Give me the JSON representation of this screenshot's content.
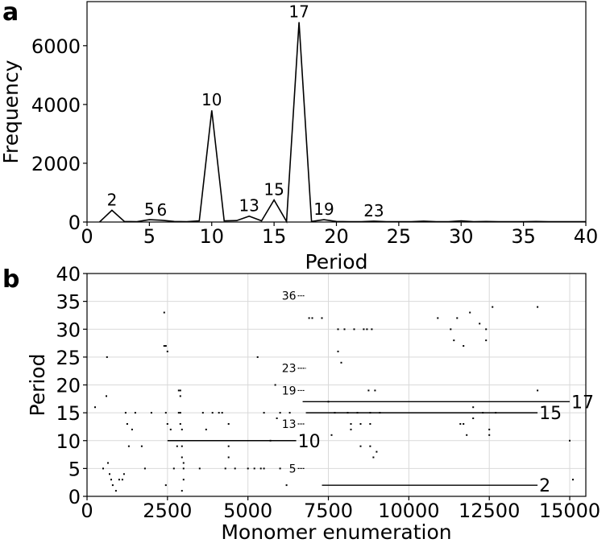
{
  "chart_data": [
    {
      "panel": "a",
      "type": "line",
      "xlabel": "Period",
      "ylabel": "Frequency",
      "xlim": [
        0,
        40
      ],
      "ylim": [
        0,
        7500
      ],
      "xticks": [
        "0",
        "5",
        "10",
        "15",
        "20",
        "25",
        "30",
        "35",
        "40"
      ],
      "yticks": [
        "0",
        "2000",
        "4000",
        "6000"
      ],
      "grid": false,
      "color": "#000000",
      "series": [
        {
          "x": [
            1,
            2,
            3,
            4,
            5,
            6,
            7,
            8,
            9,
            10,
            11,
            12,
            13,
            14,
            15,
            16,
            17,
            18,
            19,
            20,
            21,
            22,
            23,
            24,
            25,
            26,
            27,
            28,
            29,
            30,
            31,
            32,
            33,
            34,
            35,
            36,
            37,
            38,
            39,
            40
          ],
          "values": [
            0,
            400,
            20,
            10,
            80,
            60,
            20,
            10,
            40,
            3800,
            40,
            50,
            200,
            40,
            750,
            20,
            6800,
            20,
            80,
            20,
            10,
            10,
            30,
            10,
            10,
            10,
            30,
            10,
            10,
            40,
            10,
            20,
            10,
            10,
            10,
            20,
            10,
            10,
            10,
            10
          ]
        }
      ],
      "annotations": [
        {
          "x": 2,
          "y": 400,
          "label": "2"
        },
        {
          "x": 5,
          "y": 80,
          "label": "5"
        },
        {
          "x": 6,
          "y": 60,
          "label": "6"
        },
        {
          "x": 10,
          "y": 3800,
          "label": "10"
        },
        {
          "x": 13,
          "y": 200,
          "label": "13"
        },
        {
          "x": 15,
          "y": 750,
          "label": "15"
        },
        {
          "x": 17,
          "y": 6800,
          "label": "17"
        },
        {
          "x": 19,
          "y": 80,
          "label": "19"
        },
        {
          "x": 23,
          "y": 30,
          "label": "23"
        }
      ]
    },
    {
      "panel": "b",
      "type": "scatter",
      "xlabel": "Monomer enumeration",
      "ylabel": "Period",
      "xlim": [
        0,
        15500
      ],
      "ylim": [
        0,
        40
      ],
      "xticks": [
        "0",
        "2500",
        "5000",
        "7500",
        "10000",
        "12500",
        "15000"
      ],
      "yticks": [
        "0",
        "5",
        "10",
        "15",
        "20",
        "25",
        "30",
        "35",
        "40"
      ],
      "grid": true,
      "color": "#000000",
      "segments": [
        {
          "period": 2,
          "x_start": 7300,
          "x_end": 14000,
          "label": "2"
        },
        {
          "period": 10,
          "x_start": 2500,
          "x_end": 6500,
          "label": "10"
        },
        {
          "period": 15,
          "x_start": 6800,
          "x_end": 14000,
          "label": "15"
        },
        {
          "period": 17,
          "x_start": 6700,
          "x_end": 15000,
          "label": "17"
        }
      ],
      "short_segments": [
        {
          "period": 5,
          "x_start": 6550,
          "x_end": 6750,
          "label": "5"
        },
        {
          "period": 13,
          "x_start": 6550,
          "x_end": 6750,
          "label": "13"
        },
        {
          "period": 19,
          "x_start": 6550,
          "x_end": 6750,
          "label": "19"
        },
        {
          "period": 23,
          "x_start": 6550,
          "x_end": 6800,
          "label": "23"
        },
        {
          "period": 36,
          "x_start": 6550,
          "x_end": 6750,
          "label": "36"
        }
      ],
      "points": [
        [
          250,
          16
        ],
        [
          500,
          5
        ],
        [
          600,
          18
        ],
        [
          620,
          25
        ],
        [
          650,
          6
        ],
        [
          700,
          4
        ],
        [
          750,
          3
        ],
        [
          800,
          2
        ],
        [
          900,
          1
        ],
        [
          1000,
          3
        ],
        [
          1100,
          3
        ],
        [
          1150,
          4
        ],
        [
          1200,
          15
        ],
        [
          1250,
          13
        ],
        [
          1300,
          9
        ],
        [
          1400,
          12
        ],
        [
          1500,
          15
        ],
        [
          1700,
          9
        ],
        [
          1800,
          5
        ],
        [
          2000,
          15
        ],
        [
          2400,
          33
        ],
        [
          2400,
          27
        ],
        [
          2450,
          27
        ],
        [
          2450,
          15
        ],
        [
          2500,
          13
        ],
        [
          2450,
          2
        ],
        [
          2500,
          26
        ],
        [
          2600,
          12
        ],
        [
          2700,
          5
        ],
        [
          2800,
          9
        ],
        [
          2850,
          19
        ],
        [
          2850,
          15
        ],
        [
          2900,
          19
        ],
        [
          2900,
          18
        ],
        [
          2900,
          15
        ],
        [
          2900,
          13
        ],
        [
          2950,
          12
        ],
        [
          2950,
          9
        ],
        [
          2950,
          7
        ],
        [
          3000,
          6
        ],
        [
          3000,
          5
        ],
        [
          3000,
          3
        ],
        [
          2950,
          1
        ],
        [
          3500,
          5
        ],
        [
          3600,
          15
        ],
        [
          3700,
          12
        ],
        [
          3900,
          15
        ],
        [
          4100,
          15
        ],
        [
          4200,
          15
        ],
        [
          4300,
          5
        ],
        [
          4400,
          13
        ],
        [
          4400,
          9
        ],
        [
          4400,
          7
        ],
        [
          4600,
          5
        ],
        [
          5000,
          5
        ],
        [
          5200,
          5
        ],
        [
          5300,
          25
        ],
        [
          5400,
          5
        ],
        [
          5500,
          5
        ],
        [
          5500,
          15
        ],
        [
          5700,
          10
        ],
        [
          5850,
          20
        ],
        [
          5900,
          14
        ],
        [
          6000,
          5
        ],
        [
          6000,
          15
        ],
        [
          6200,
          2
        ],
        [
          6300,
          15
        ],
        [
          6900,
          32
        ],
        [
          7000,
          32
        ],
        [
          7300,
          32
        ],
        [
          7500,
          17
        ],
        [
          7600,
          11
        ],
        [
          7700,
          15
        ],
        [
          7800,
          30
        ],
        [
          7800,
          26
        ],
        [
          7900,
          24
        ],
        [
          8000,
          30
        ],
        [
          8100,
          15
        ],
        [
          8200,
          13
        ],
        [
          8200,
          12
        ],
        [
          8300,
          30
        ],
        [
          8400,
          15
        ],
        [
          8500,
          13
        ],
        [
          8500,
          9
        ],
        [
          8600,
          30
        ],
        [
          8700,
          30
        ],
        [
          8750,
          19
        ],
        [
          8800,
          15
        ],
        [
          8800,
          13
        ],
        [
          8800,
          9
        ],
        [
          8850,
          30
        ],
        [
          8900,
          7
        ],
        [
          8950,
          19
        ],
        [
          9000,
          8
        ],
        [
          9100,
          15
        ],
        [
          10900,
          32
        ],
        [
          11300,
          30
        ],
        [
          11400,
          28
        ],
        [
          11500,
          32
        ],
        [
          11600,
          13
        ],
        [
          11700,
          27
        ],
        [
          11700,
          13
        ],
        [
          11800,
          11
        ],
        [
          11900,
          33
        ],
        [
          12000,
          14
        ],
        [
          12000,
          16
        ],
        [
          12200,
          31
        ],
        [
          12300,
          15
        ],
        [
          12400,
          30
        ],
        [
          12400,
          28
        ],
        [
          12500,
          12
        ],
        [
          12500,
          11
        ],
        [
          12600,
          34
        ],
        [
          12700,
          15
        ],
        [
          14000,
          34
        ],
        [
          14000,
          19
        ],
        [
          15000,
          10
        ],
        [
          15100,
          3
        ]
      ]
    }
  ]
}
